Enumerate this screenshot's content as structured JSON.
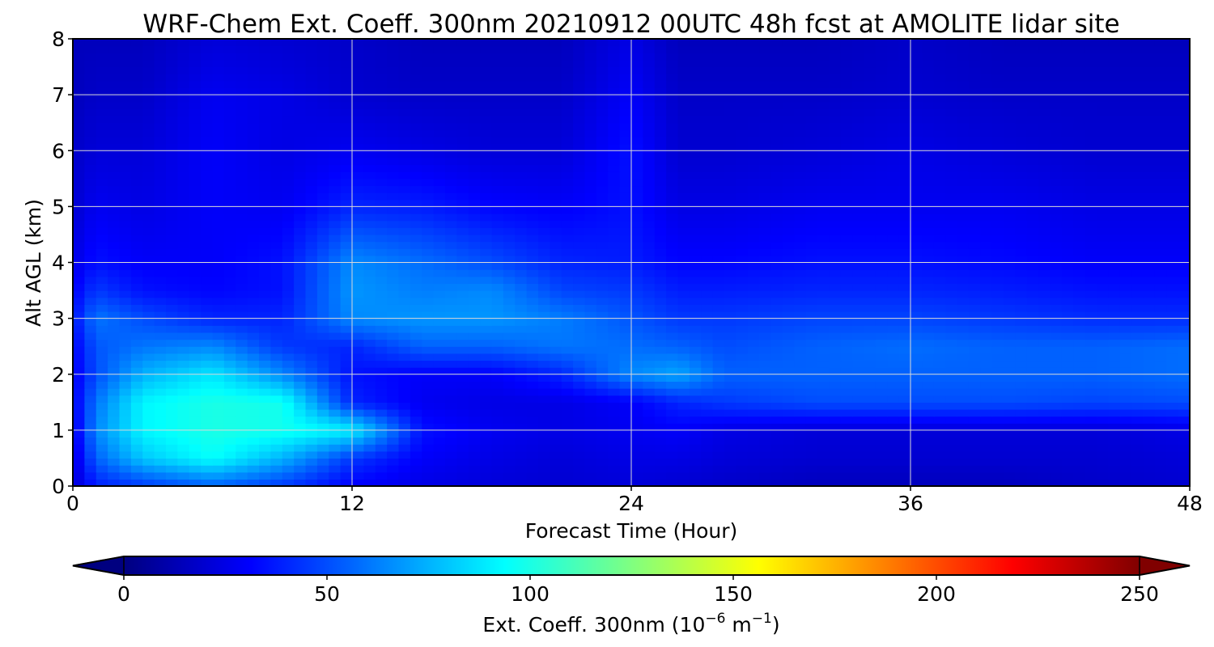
{
  "chart_data": {
    "type": "heatmap",
    "title": "WRF-Chem Ext. Coeff. 300nm  20210912 00UTC 48h fcst at AMOLITE lidar site",
    "xlabel": "Forecast Time (Hour)",
    "ylabel": "Alt AGL (km)",
    "xlim": [
      0,
      48
    ],
    "ylim": [
      0,
      8
    ],
    "x_ticks": [
      "0",
      "12",
      "24",
      "36",
      "48"
    ],
    "y_ticks": [
      "0",
      "1",
      "2",
      "3",
      "4",
      "5",
      "6",
      "7",
      "8"
    ],
    "grid": true,
    "colormap": "jet",
    "colorbar": {
      "orientation": "horizontal",
      "placement": "bottom",
      "range": [
        0,
        250
      ],
      "extend": "both",
      "ticks": [
        "0",
        "50",
        "100",
        "150",
        "200",
        "250"
      ],
      "label_main": "Ext. Coeff. 300nm  (10",
      "label_exp1": "−6",
      "label_mid": " m",
      "label_exp2": "−1",
      "label_end": ")"
    },
    "value_grid": {
      "x": [
        0,
        1,
        3,
        6,
        9,
        12,
        15,
        18,
        21,
        24,
        26,
        28,
        32,
        36,
        40,
        44,
        48
      ],
      "y": [
        0,
        0.5,
        1,
        1.5,
        2,
        2.5,
        3,
        3.5,
        4,
        5,
        6,
        7,
        8
      ],
      "z": [
        [
          20,
          38,
          45,
          55,
          45,
          30,
          25,
          22,
          20,
          22,
          20,
          18,
          15,
          15,
          15,
          18,
          20
        ],
        [
          22,
          55,
          80,
          95,
          75,
          45,
          30,
          25,
          22,
          25,
          25,
          22,
          20,
          20,
          20,
          20,
          22
        ],
        [
          25,
          65,
          92,
          100,
          98,
          90,
          35,
          28,
          25,
          28,
          30,
          25,
          22,
          22,
          22,
          22,
          25
        ],
        [
          28,
          60,
          92,
          100,
          98,
          40,
          28,
          25,
          25,
          30,
          40,
          45,
          50,
          50,
          50,
          48,
          50
        ],
        [
          28,
          50,
          75,
          88,
          65,
          35,
          30,
          30,
          40,
          65,
          72,
          55,
          55,
          55,
          55,
          55,
          58
        ],
        [
          30,
          52,
          60,
          65,
          45,
          40,
          55,
          55,
          60,
          58,
          55,
          50,
          55,
          58,
          55,
          55,
          58
        ],
        [
          35,
          60,
          50,
          40,
          40,
          65,
          68,
          68,
          62,
          52,
          45,
          45,
          48,
          48,
          45,
          42,
          42
        ],
        [
          30,
          45,
          35,
          32,
          35,
          68,
          62,
          65,
          48,
          45,
          38,
          38,
          40,
          40,
          38,
          35,
          35
        ],
        [
          25,
          35,
          30,
          30,
          35,
          65,
          58,
          50,
          40,
          38,
          32,
          32,
          35,
          35,
          33,
          30,
          30
        ],
        [
          20,
          28,
          25,
          30,
          28,
          40,
          38,
          32,
          30,
          35,
          25,
          25,
          28,
          28,
          28,
          25,
          25
        ],
        [
          18,
          22,
          22,
          30,
          25,
          28,
          25,
          22,
          22,
          35,
          20,
          20,
          22,
          25,
          22,
          20,
          20
        ],
        [
          15,
          18,
          18,
          28,
          25,
          20,
          18,
          18,
          18,
          30,
          18,
          18,
          18,
          20,
          18,
          18,
          18
        ],
        [
          15,
          15,
          15,
          22,
          20,
          18,
          15,
          15,
          15,
          25,
          15,
          15,
          15,
          18,
          15,
          15,
          15
        ]
      ]
    }
  }
}
